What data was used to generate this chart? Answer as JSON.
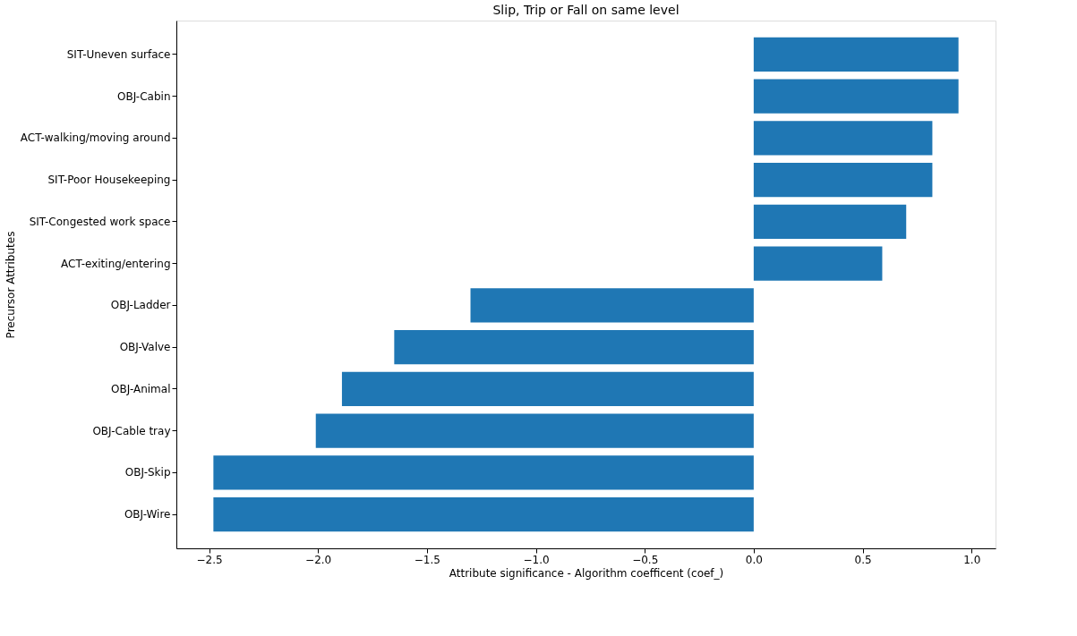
{
  "chart_data": {
    "type": "bar",
    "orientation": "horizontal",
    "title": "Slip, Trip or Fall on same level",
    "xlabel": "Attribute significance - Algorithm coefficent (coef_)",
    "ylabel": "Precursor Attributes",
    "categories": [
      "SIT-Uneven surface",
      "OBJ-Cabin",
      "ACT-walking/moving around",
      "SIT-Poor Housekeeping",
      "SIT-Congested work space",
      "ACT-exiting/entering",
      "OBJ-Ladder",
      "OBJ-Valve",
      "OBJ-Animal",
      "OBJ-Cable tray",
      "OBJ-Skip",
      "OBJ-Wire"
    ],
    "values": [
      0.94,
      0.94,
      0.82,
      0.82,
      0.7,
      0.59,
      -1.3,
      -1.65,
      -1.89,
      -2.01,
      -2.48,
      -2.48
    ],
    "color": "#1f77b4",
    "xlim": [
      -2.65,
      1.11
    ],
    "xticks": [
      {
        "value": -2.5,
        "label": "−2.5"
      },
      {
        "value": -2.0,
        "label": "−2.0"
      },
      {
        "value": -1.5,
        "label": "−1.5"
      },
      {
        "value": -1.0,
        "label": "−1.0"
      },
      {
        "value": -0.5,
        "label": "−0.5"
      },
      {
        "value": 0.0,
        "label": "0.0"
      },
      {
        "value": 0.5,
        "label": "0.5"
      },
      {
        "value": 1.0,
        "label": "1.0"
      }
    ],
    "grid": false
  }
}
